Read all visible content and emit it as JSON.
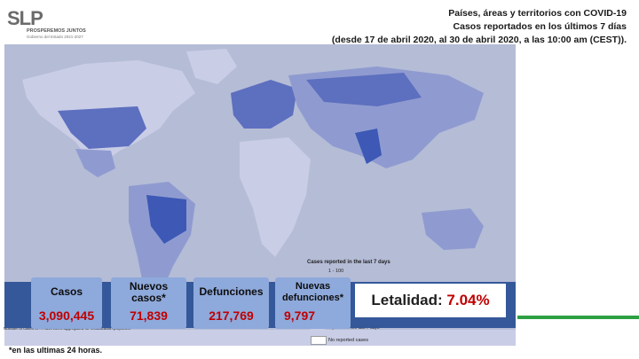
{
  "logo": {
    "wordmark": "SLP",
    "line1": "PROSPEREMOS JUNTOS",
    "line2": "Gobierno del Estado 2021-2027"
  },
  "header": {
    "line1": "Países, áreas y territorios con COVID-19",
    "line2": "Casos reportados en los últimos 7 días",
    "line3": "(desde 17 de abril 2020, al 30 de abril 2020, a las 10:00 am (CEST))."
  },
  "map": {
    "legend_title": "Cases reported in the last 7 days",
    "legend_first": "1 - 100",
    "legend_partial": "reported in the last 7 days",
    "legend_none": "No reported cases",
    "note": "Number of cases of ... have been aggregated for visualization purposes.",
    "colors": {
      "ocean": "#b5bcd6",
      "land_light": "#c9cde6",
      "land_mid": "#8f9bd0",
      "land_dark": "#5d6fbf",
      "land_darkest": "#3d58b5"
    }
  },
  "stats": {
    "cases_label": "Casos",
    "cases_value": "3,090,445",
    "new_cases_label": "Nuevos casos*",
    "new_cases_value": "71,839",
    "deaths_label": "Defunciones",
    "deaths_value": "217,769",
    "new_deaths_label": "Nuevas defunciones*",
    "new_deaths_value": "9,797",
    "lethality_label": "Letalidad:",
    "lethality_value": "7.04%",
    "colors": {
      "band": "#2f5597",
      "box": "#8ea9db",
      "value": "#c00000"
    }
  },
  "footnote": "*en las ultimas 24 horas."
}
